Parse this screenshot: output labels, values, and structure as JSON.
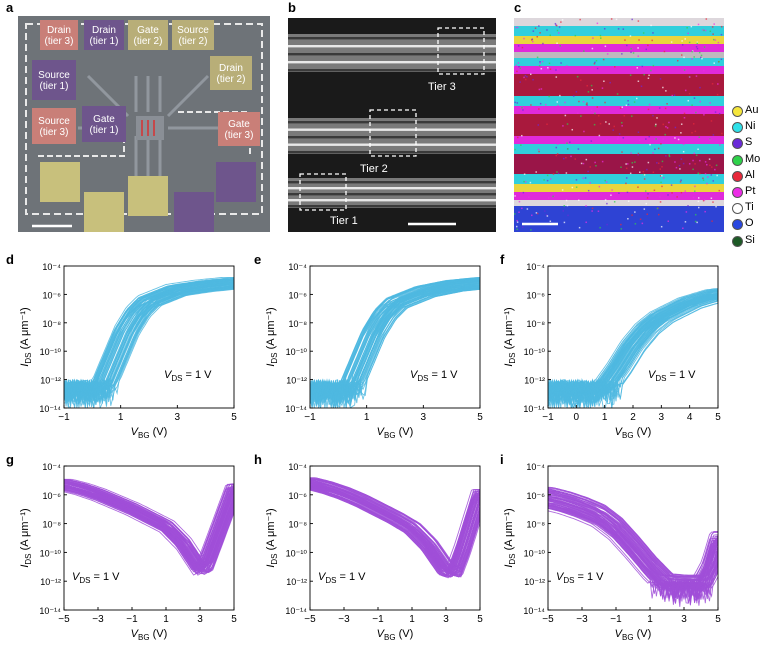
{
  "panel_a": {
    "letter": "a",
    "pads": [
      {
        "lines": [
          "Drain",
          "(tier 3)"
        ],
        "fill": "#c97f78"
      },
      {
        "lines": [
          "Drain",
          "(tier 1)"
        ],
        "fill": "#6e558c"
      },
      {
        "lines": [
          "Gate",
          "(tier 2)"
        ],
        "fill": "#b8ae78"
      },
      {
        "lines": [
          "Source",
          "(tier 2)"
        ],
        "fill": "#b8ae78"
      },
      {
        "lines": [
          "Source",
          "(tier 1)"
        ],
        "fill": "#6e558c"
      },
      {
        "lines": [
          "Drain",
          "(tier 2)"
        ],
        "fill": "#b8ae78"
      },
      {
        "lines": [
          "Source",
          "(tier 3)"
        ],
        "fill": "#c97f78"
      },
      {
        "lines": [
          "Gate",
          "(tier 1)"
        ],
        "fill": "#6e558c"
      },
      {
        "lines": [
          "Gate",
          "(tier 3)"
        ],
        "fill": "#c97f78"
      }
    ]
  },
  "panel_b": {
    "letter": "b",
    "tiers": [
      "Tier 3",
      "Tier 2",
      "Tier 1"
    ]
  },
  "panel_c": {
    "letter": "c",
    "legend": [
      {
        "label": "Au",
        "color": "#f5e63c"
      },
      {
        "label": "Ni",
        "color": "#2ee0e8"
      },
      {
        "label": "S",
        "color": "#6a2ad8"
      },
      {
        "label": "Mo",
        "color": "#2ed24a"
      },
      {
        "label": "Al",
        "color": "#e8283a"
      },
      {
        "label": "Pt",
        "color": "#ec2ce6"
      },
      {
        "label": "Ti",
        "color": "#ffffff"
      },
      {
        "label": "O",
        "color": "#2a48e0"
      },
      {
        "label": "Si",
        "color": "#1d5a26"
      }
    ]
  },
  "chart_data": [
    {
      "panel": "d",
      "type": "line",
      "color": "#4fb8e0",
      "xlabel_main": "V",
      "xlabel_sub": "BG",
      "xlabel_unit": " (V)",
      "ylabel_main": "I",
      "ylabel_sub": "DS",
      "ylabel_unit": " (A μm⁻¹)",
      "xlim": [
        -1,
        5
      ],
      "ylim": [
        -14,
        -4
      ],
      "log_y": true,
      "xticks": [
        "−1",
        "1",
        "3",
        "5"
      ],
      "xtick_values": [
        -1,
        1,
        3,
        5
      ],
      "yticks": [
        "10⁻¹⁴",
        "10⁻¹²",
        "10⁻¹⁰",
        "10⁻⁸",
        "10⁻⁶",
        "10⁻⁴"
      ],
      "ytick_values": [
        -14,
        -12,
        -10,
        -8,
        -6,
        -4
      ],
      "annotation": "V_DS = 1 V",
      "annotation_main": "V",
      "annotation_sub": "DS",
      "annotation_rest": " = 1 V",
      "curve_family": "n-type",
      "floor_log": [
        -13.5,
        -12
      ],
      "median_curve": {
        "x": [
          -1,
          0,
          0.4,
          0.8,
          1.2,
          1.6,
          2.0,
          3.0,
          4.0,
          5.0
        ],
        "log_y": [
          -12.8,
          -12.8,
          -12.4,
          -10.5,
          -8.6,
          -7.3,
          -6.5,
          -5.7,
          -5.4,
          -5.2
        ]
      }
    },
    {
      "panel": "e",
      "type": "line",
      "color": "#4fb8e0",
      "xlabel_main": "V",
      "xlabel_sub": "BG",
      "xlabel_unit": " (V)",
      "ylabel_main": "I",
      "ylabel_sub": "DS",
      "ylabel_unit": " (A μm⁻¹)",
      "xlim": [
        -1,
        5
      ],
      "ylim": [
        -14,
        -4
      ],
      "log_y": true,
      "xticks": [
        "−1",
        "1",
        "3",
        "5"
      ],
      "xtick_values": [
        -1,
        1,
        3,
        5
      ],
      "yticks": [
        "10⁻¹⁴",
        "10⁻¹²",
        "10⁻¹⁰",
        "10⁻⁸",
        "10⁻⁶",
        "10⁻⁴"
      ],
      "ytick_values": [
        -14,
        -12,
        -10,
        -8,
        -6,
        -4
      ],
      "annotation": "V_DS = 1 V",
      "annotation_main": "V",
      "annotation_sub": "DS",
      "annotation_rest": " = 1 V",
      "curve_family": "n-type",
      "floor_log": [
        -13.8,
        -12
      ],
      "median_curve": {
        "x": [
          -1,
          0,
          0.4,
          0.8,
          1.2,
          1.6,
          2.0,
          3.0,
          4.0,
          5.0
        ],
        "log_y": [
          -12.9,
          -12.9,
          -12.5,
          -10.6,
          -8.7,
          -7.4,
          -6.6,
          -5.8,
          -5.4,
          -5.2
        ]
      }
    },
    {
      "panel": "f",
      "type": "line",
      "color": "#4fb8e0",
      "xlabel_main": "V",
      "xlabel_sub": "BG",
      "xlabel_unit": " (V)",
      "ylabel_main": "I",
      "ylabel_sub": "DS",
      "ylabel_unit": " (A μm⁻¹)",
      "xlim": [
        -1,
        5
      ],
      "ylim": [
        -14,
        -4
      ],
      "log_y": true,
      "xticks": [
        "−1",
        "0",
        "1",
        "2",
        "3",
        "4",
        "5"
      ],
      "xtick_values": [
        -1,
        0,
        1,
        2,
        3,
        4,
        5
      ],
      "yticks": [
        "10⁻¹⁴",
        "10⁻¹²",
        "10⁻¹⁰",
        "10⁻⁸",
        "10⁻⁶",
        "10⁻⁴"
      ],
      "ytick_values": [
        -14,
        -12,
        -10,
        -8,
        -6,
        -4
      ],
      "annotation": "V_DS = 1 V",
      "annotation_main": "V",
      "annotation_sub": "DS",
      "annotation_rest": " = 1 V",
      "curve_family": "n-type",
      "floor_log": [
        -13.7,
        -12
      ],
      "median_curve": {
        "x": [
          -1,
          0,
          1.0,
          1.5,
          2.0,
          2.5,
          3.0,
          4.0,
          5.0
        ],
        "log_y": [
          -12.8,
          -12.8,
          -12.6,
          -11.2,
          -9.6,
          -8.4,
          -7.6,
          -6.6,
          -6.0
        ]
      }
    },
    {
      "panel": "g",
      "type": "line",
      "color": "#a04fd8",
      "xlabel_main": "V",
      "xlabel_sub": "BG",
      "xlabel_unit": " (V)",
      "ylabel_main": "I",
      "ylabel_sub": "DS",
      "ylabel_unit": " (A μm⁻¹)",
      "xlim": [
        -5,
        5
      ],
      "ylim": [
        -14,
        -4
      ],
      "log_y": true,
      "xticks": [
        "−5",
        "−3",
        "−1",
        "1",
        "3",
        "5"
      ],
      "xtick_values": [
        -5,
        -3,
        -1,
        1,
        3,
        5
      ],
      "yticks": [
        "10⁻¹⁴",
        "10⁻¹²",
        "10⁻¹⁰",
        "10⁻⁸",
        "10⁻⁶",
        "10⁻⁴"
      ],
      "ytick_values": [
        -14,
        -12,
        -10,
        -8,
        -6,
        -4
      ],
      "annotation": "V_DS = 1 V",
      "annotation_main": "V",
      "annotation_sub": "DS",
      "annotation_rest": " = 1 V",
      "curve_family": "p-type",
      "floor_log": [
        -14,
        -12.5
      ],
      "median_curve": {
        "x": [
          -5,
          -4,
          -3,
          -2,
          -1,
          0,
          1,
          2,
          3.0,
          3.3,
          4,
          5
        ],
        "log_y": [
          -5.3,
          -5.6,
          -6.0,
          -6.5,
          -7.0,
          -7.6,
          -8.2,
          -9.4,
          -11.2,
          -11.0,
          -8.8,
          -5.6
        ]
      }
    },
    {
      "panel": "h",
      "type": "line",
      "color": "#a04fd8",
      "xlabel_main": "V",
      "xlabel_sub": "BG",
      "xlabel_unit": " (V)",
      "ylabel_main": "I",
      "ylabel_sub": "DS",
      "ylabel_unit": " (A μm⁻¹)",
      "xlim": [
        -5,
        5
      ],
      "ylim": [
        -14,
        -4
      ],
      "log_y": true,
      "xticks": [
        "−5",
        "−3",
        "−1",
        "1",
        "3",
        "5"
      ],
      "xtick_values": [
        -5,
        -3,
        -1,
        1,
        3,
        5
      ],
      "yticks": [
        "10⁻¹⁴",
        "10⁻¹²",
        "10⁻¹⁰",
        "10⁻⁸",
        "10⁻⁶",
        "10⁻⁴"
      ],
      "ytick_values": [
        -14,
        -12,
        -10,
        -8,
        -6,
        -4
      ],
      "annotation": "V_DS = 1 V",
      "annotation_main": "V",
      "annotation_sub": "DS",
      "annotation_rest": " = 1 V",
      "curve_family": "p-type",
      "floor_log": [
        -14,
        -12.5
      ],
      "median_curve": {
        "x": [
          -5,
          -4,
          -3,
          -2,
          -1,
          0,
          1,
          2,
          3.0,
          3.5,
          4,
          5
        ],
        "log_y": [
          -5.2,
          -5.5,
          -5.9,
          -6.4,
          -7.0,
          -7.6,
          -8.3,
          -9.5,
          -11.2,
          -11.4,
          -9.8,
          -6.0
        ]
      }
    },
    {
      "panel": "i",
      "type": "line",
      "color": "#a04fd8",
      "xlabel_main": "V",
      "xlabel_sub": "BG",
      "xlabel_unit": " (V)",
      "ylabel_main": "I",
      "ylabel_sub": "DS",
      "ylabel_unit": " (A μm⁻¹)",
      "xlim": [
        -5,
        5
      ],
      "ylim": [
        -14,
        -4
      ],
      "log_y": true,
      "xticks": [
        "−5",
        "−3",
        "−1",
        "1",
        "3",
        "5"
      ],
      "xtick_values": [
        -5,
        -3,
        -1,
        1,
        3,
        5
      ],
      "yticks": [
        "10⁻¹⁴",
        "10⁻¹²",
        "10⁻¹⁰",
        "10⁻⁸",
        "10⁻⁶",
        "10⁻⁴"
      ],
      "ytick_values": [
        -14,
        -12,
        -10,
        -8,
        -6,
        -4
      ],
      "annotation": "V_DS = 1 V",
      "annotation_main": "V",
      "annotation_sub": "DS",
      "annotation_rest": " = 1 V",
      "curve_family": "p-type-floor",
      "floor_log": [
        -12.6,
        -12.0
      ],
      "median_curve": {
        "x": [
          -5,
          -4,
          -3,
          -2,
          -1,
          0,
          1,
          2,
          3,
          4,
          4.5,
          5
        ],
        "log_y": [
          -6.2,
          -6.5,
          -6.9,
          -7.4,
          -8.3,
          -9.6,
          -11.0,
          -12.2,
          -12.3,
          -12.3,
          -11.2,
          -9.2
        ]
      }
    }
  ]
}
